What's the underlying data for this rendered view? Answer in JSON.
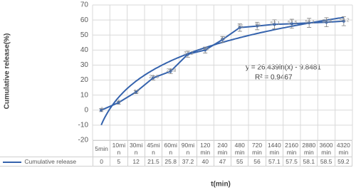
{
  "chart_data": {
    "type": "line",
    "y_label": "Cumulative release(%)",
    "x_label": "t(min)",
    "categories": [
      "5min",
      "10min",
      "30min",
      "45min",
      "60min",
      "90min",
      "120min",
      "240min",
      "480min",
      "720min",
      "1440min",
      "2160min",
      "2880min",
      "3600min",
      "4320min"
    ],
    "series": [
      {
        "name": "Cumulative release",
        "color": "#3563ad",
        "values": [
          0,
          5,
          12,
          21.5,
          25.8,
          37.2,
          40,
          47,
          55,
          56,
          57.1,
          57.5,
          58.1,
          58.5,
          59.2
        ],
        "errors": [
          1,
          1,
          1,
          1.5,
          1.5,
          2,
          2,
          2,
          2.5,
          2.5,
          3,
          3,
          3,
          3,
          3
        ]
      }
    ],
    "trendline": {
      "a": 26.439,
      "b": -9.8481,
      "equation": "y = 26.439ln(x) - 9.8481",
      "r2_label": "R² = 0.9467",
      "color": "#3563ad"
    },
    "ylim": [
      -20,
      70
    ],
    "yticks": [
      -20,
      -10,
      0,
      10,
      20,
      30,
      40,
      50,
      60,
      70
    ],
    "grid": true
  }
}
